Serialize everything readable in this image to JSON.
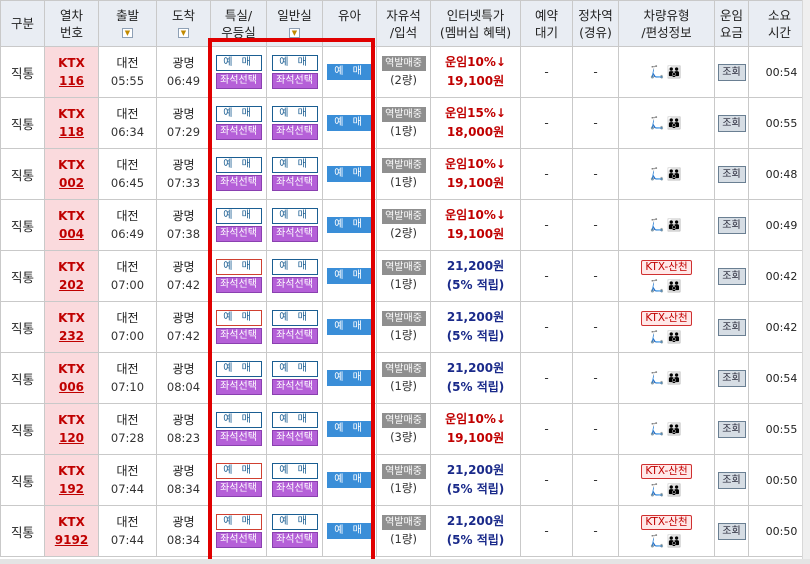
{
  "headers": {
    "type": "구분",
    "train_no": [
      "열차",
      "번호"
    ],
    "depart": "출발",
    "arrive": "도착",
    "special": [
      "특실/",
      "우등실"
    ],
    "general": "일반실",
    "child": "유아",
    "free_seat": [
      "자유석",
      "/입석"
    ],
    "internet_deal": [
      "인터넷특가",
      "(멤버십 혜택)"
    ],
    "reserve_wait": [
      "예약",
      "대기"
    ],
    "stop_station": [
      "정차역",
      "(경유)"
    ],
    "car_type": [
      "차량유형",
      "/편성정보"
    ],
    "fare": [
      "운임",
      "요금"
    ],
    "duration": [
      "소요",
      "시간"
    ]
  },
  "labels": {
    "book": "예 매",
    "seat_select": "좌석선택",
    "child_book": "예 매",
    "standing_sale": "역발매중",
    "fare_lookup": "조회",
    "dash": "-"
  },
  "trains": [
    {
      "type": "직통",
      "kind": "KTX",
      "number": "116",
      "dep_station": "대전",
      "dep_time": "05:55",
      "arr_station": "광명",
      "arr_time": "06:49",
      "special_red": false,
      "general_red": false,
      "cars": "(2량)",
      "deal_line1": "운임10%↓",
      "deal_line2": "19,100원",
      "deal_style": "a",
      "badge": "",
      "icons": "🛴👪",
      "duration": "00:54"
    },
    {
      "type": "직통",
      "kind": "KTX",
      "number": "118",
      "dep_station": "대전",
      "dep_time": "06:34",
      "arr_station": "광명",
      "arr_time": "07:29",
      "special_red": false,
      "general_red": false,
      "cars": "(1량)",
      "deal_line1": "운임15%↓",
      "deal_line2": "18,000원",
      "deal_style": "a",
      "badge": "",
      "icons": "🛴👪",
      "duration": "00:55"
    },
    {
      "type": "직통",
      "kind": "KTX",
      "number": "002",
      "dep_station": "대전",
      "dep_time": "06:45",
      "arr_station": "광명",
      "arr_time": "07:33",
      "special_red": false,
      "general_red": false,
      "cars": "(1량)",
      "deal_line1": "운임10%↓",
      "deal_line2": "19,100원",
      "deal_style": "a",
      "badge": "",
      "icons": "🛴👪",
      "duration": "00:48"
    },
    {
      "type": "직통",
      "kind": "KTX",
      "number": "004",
      "dep_station": "대전",
      "dep_time": "06:49",
      "arr_station": "광명",
      "arr_time": "07:38",
      "special_red": false,
      "general_red": false,
      "cars": "(2량)",
      "deal_line1": "운임10%↓",
      "deal_line2": "19,100원",
      "deal_style": "a",
      "badge": "",
      "icons": "🛴👪",
      "duration": "00:49"
    },
    {
      "type": "직통",
      "kind": "KTX",
      "number": "202",
      "dep_station": "대전",
      "dep_time": "07:00",
      "arr_station": "광명",
      "arr_time": "07:42",
      "special_red": true,
      "general_red": false,
      "cars": "(1량)",
      "deal_line1": "21,200원",
      "deal_line2": "(5% 적립)",
      "deal_style": "b",
      "badge": "KTX-산천",
      "icons": "🛴👪",
      "duration": "00:42"
    },
    {
      "type": "직통",
      "kind": "KTX",
      "number": "232",
      "dep_station": "대전",
      "dep_time": "07:00",
      "arr_station": "광명",
      "arr_time": "07:42",
      "special_red": true,
      "general_red": false,
      "cars": "(1량)",
      "deal_line1": "21,200원",
      "deal_line2": "(5% 적립)",
      "deal_style": "b",
      "badge": "KTX-산천",
      "icons": "🛴👪",
      "duration": "00:42"
    },
    {
      "type": "직통",
      "kind": "KTX",
      "number": "006",
      "dep_station": "대전",
      "dep_time": "07:10",
      "arr_station": "광명",
      "arr_time": "08:04",
      "special_red": false,
      "general_red": false,
      "cars": "(1량)",
      "deal_line1": "21,200원",
      "deal_line2": "(5% 적립)",
      "deal_style": "b",
      "badge": "",
      "icons": "🛴👪",
      "duration": "00:54"
    },
    {
      "type": "직통",
      "kind": "KTX",
      "number": "120",
      "dep_station": "대전",
      "dep_time": "07:28",
      "arr_station": "광명",
      "arr_time": "08:23",
      "special_red": false,
      "general_red": false,
      "cars": "(3량)",
      "deal_line1": "운임10%↓",
      "deal_line2": "19,100원",
      "deal_style": "a",
      "badge": "",
      "icons": "🛴👪",
      "duration": "00:55"
    },
    {
      "type": "직통",
      "kind": "KTX",
      "number": "192",
      "dep_station": "대전",
      "dep_time": "07:44",
      "arr_station": "광명",
      "arr_time": "08:34",
      "special_red": true,
      "general_red": false,
      "cars": "(1량)",
      "deal_line1": "21,200원",
      "deal_line2": "(5% 적립)",
      "deal_style": "b",
      "badge": "KTX-산천",
      "icons": "🛴👪",
      "duration": "00:50"
    },
    {
      "type": "직통",
      "kind": "KTX",
      "number": "9192",
      "dep_station": "대전",
      "dep_time": "07:44",
      "arr_station": "광명",
      "arr_time": "08:34",
      "special_red": true,
      "general_red": false,
      "cars": "(1량)",
      "deal_line1": "21,200원",
      "deal_line2": "(5% 적립)",
      "deal_style": "b",
      "badge": "KTX-산천",
      "icons": "🛴👪",
      "duration": "00:50"
    }
  ],
  "colors": {
    "highlight": "#e00000",
    "train_no_bg": "#fadadd",
    "seat_select": "#b560d8",
    "child_button": "#3a8ed8",
    "header_bg": "#e9edf3"
  }
}
